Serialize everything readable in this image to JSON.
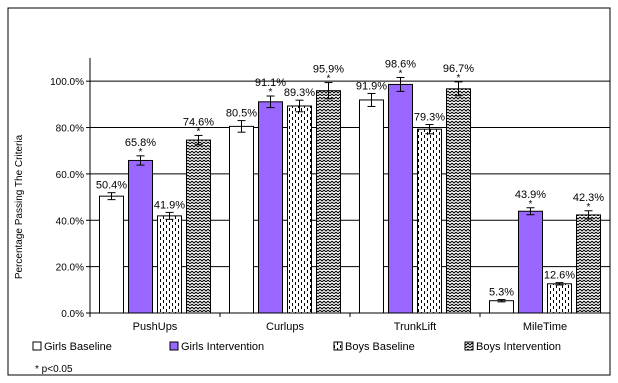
{
  "chart_data": {
    "type": "bar",
    "ylabel": "Percentage Passing The Criteria",
    "ylim": [
      0,
      110
    ],
    "yticks": [
      "0.0%",
      "20.0%",
      "40.0%",
      "60.0%",
      "80.0%",
      "100.0%"
    ],
    "grid": true,
    "legend_position": "bottom",
    "categories": [
      "PushUps",
      "Curlups",
      "TrunkLift",
      "MileTime"
    ],
    "series": [
      {
        "name": "Girls Baseline",
        "pattern": "solid-white",
        "color": "#ffffff",
        "values": [
          50.4,
          80.5,
          91.9,
          5.3
        ],
        "errors": [
          1.5,
          2.5,
          2.8,
          0.5
        ],
        "labels": [
          "50.4%",
          "80.5%",
          "91.9%",
          "5.3%"
        ],
        "sig": [
          false,
          false,
          false,
          false
        ]
      },
      {
        "name": "Girls Intervention",
        "pattern": "solid-purple",
        "color": "#9966ff",
        "values": [
          65.8,
          91.1,
          98.6,
          43.9
        ],
        "errors": [
          2.0,
          2.5,
          3.0,
          1.5
        ],
        "labels": [
          "65.8%",
          "91.1%",
          "98.6%",
          "43.9%"
        ],
        "sig": [
          true,
          true,
          true,
          true
        ]
      },
      {
        "name": "Boys Baseline",
        "pattern": "dashed-vertical",
        "color": "#000000",
        "values": [
          41.9,
          89.3,
          79.3,
          12.6
        ],
        "errors": [
          1.5,
          2.5,
          2.0,
          0.5
        ],
        "labels": [
          "41.9%",
          "89.3%",
          "79.3%",
          "12.6%"
        ],
        "sig": [
          false,
          false,
          false,
          false
        ]
      },
      {
        "name": "Boys Intervention",
        "pattern": "zigzag",
        "color": "#000000",
        "values": [
          74.6,
          95.9,
          96.7,
          42.3
        ],
        "errors": [
          2.0,
          3.5,
          3.0,
          1.8
        ],
        "labels": [
          "74.6%",
          "95.9%",
          "96.7%",
          "42.3%"
        ],
        "sig": [
          true,
          true,
          true,
          true
        ]
      }
    ],
    "annotation": "* p<0.05"
  }
}
